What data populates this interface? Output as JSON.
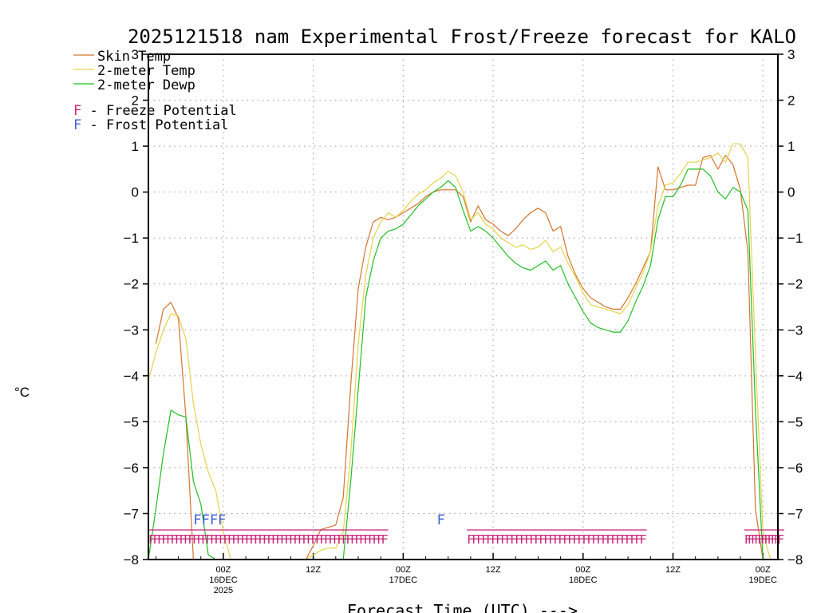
{
  "colors": {
    "skin": "#d5732f",
    "t2m": "#e5d34a",
    "dewp": "#1fbf23",
    "freeze": "#c8257a",
    "frost": "#3f5fd6",
    "grid": "#9a9a9a"
  },
  "chart_data": {
    "type": "line",
    "title": "2025121518 nam Experimental Frost/Freeze forecast for KALO",
    "xlabel": "Forecast Time (UTC) --->",
    "ylabel": "°C",
    "ylim": [
      -8,
      3
    ],
    "yticks": [
      -8,
      -7,
      -6,
      -5,
      -4,
      -3,
      -2,
      -1,
      0,
      1,
      2,
      3
    ],
    "xlim": [
      -10,
      74
    ],
    "xticks": [
      {
        "t": 0,
        "lines": [
          "00Z",
          "16DEC",
          "2025"
        ]
      },
      {
        "t": 12,
        "lines": [
          "12Z"
        ]
      },
      {
        "t": 24,
        "lines": [
          "00Z",
          "17DEC"
        ]
      },
      {
        "t": 36,
        "lines": [
          "12Z"
        ]
      },
      {
        "t": 48,
        "lines": [
          "00Z",
          "18DEC"
        ]
      },
      {
        "t": 60,
        "lines": [
          "12Z"
        ]
      },
      {
        "t": 72,
        "lines": [
          "00Z",
          "19DEC"
        ]
      }
    ],
    "legend": [
      {
        "key": "skin",
        "label": "Skin Temp"
      },
      {
        "key": "t2m",
        "label": "2-meter Temp"
      },
      {
        "key": "dewp",
        "label": "2-meter Dewp"
      }
    ],
    "potential_legend": [
      {
        "key": "freeze",
        "letter": "F",
        "text": " - Freeze Potential"
      },
      {
        "key": "frost",
        "letter": "F",
        "text": " - Frost Potential"
      }
    ],
    "series": [
      {
        "key": "skin",
        "name": "Skin Temp",
        "points": [
          [
            -9,
            -3.3
          ],
          [
            -8,
            -2.55
          ],
          [
            -7,
            -2.4
          ],
          [
            -6,
            -2.75
          ],
          [
            -5,
            -4.9
          ],
          [
            -4,
            -8.0
          ],
          [
            -3,
            -8.0
          ],
          [
            -2,
            -8.0
          ],
          [
            -1,
            -8.0
          ],
          [
            0,
            -8.0
          ],
          [
            1,
            -8.0
          ],
          [
            2,
            -8.0
          ],
          [
            3,
            -8.0
          ],
          [
            4,
            -8.0
          ],
          [
            5,
            -8.0
          ],
          [
            6,
            -8.0
          ],
          [
            7,
            -8.0
          ],
          [
            8,
            -8.0
          ],
          [
            9,
            -8.0
          ],
          [
            10,
            -8.0
          ],
          [
            11,
            -8.0
          ],
          [
            12,
            -7.7
          ],
          [
            13,
            -7.35
          ],
          [
            14,
            -7.3
          ],
          [
            15,
            -7.25
          ],
          [
            16,
            -6.65
          ],
          [
            17,
            -4.2
          ],
          [
            18,
            -2.1
          ],
          [
            19,
            -1.2
          ],
          [
            20,
            -0.65
          ],
          [
            21,
            -0.55
          ],
          [
            22,
            -0.6
          ],
          [
            23,
            -0.55
          ],
          [
            24,
            -0.45
          ],
          [
            25,
            -0.35
          ],
          [
            26,
            -0.25
          ],
          [
            27,
            -0.1
          ],
          [
            28,
            0.0
          ],
          [
            29,
            0.05
          ],
          [
            30,
            0.05
          ],
          [
            31,
            0.05
          ],
          [
            32,
            -0.1
          ],
          [
            33,
            -0.65
          ],
          [
            34,
            -0.3
          ],
          [
            35,
            -0.6
          ],
          [
            36,
            -0.7
          ],
          [
            37,
            -0.85
          ],
          [
            38,
            -0.95
          ],
          [
            39,
            -0.8
          ],
          [
            40,
            -0.6
          ],
          [
            41,
            -0.45
          ],
          [
            42,
            -0.35
          ],
          [
            43,
            -0.45
          ],
          [
            44,
            -0.85
          ],
          [
            45,
            -0.75
          ],
          [
            46,
            -1.4
          ],
          [
            47,
            -1.8
          ],
          [
            48,
            -2.1
          ],
          [
            49,
            -2.3
          ],
          [
            50,
            -2.4
          ],
          [
            51,
            -2.5
          ],
          [
            52,
            -2.55
          ],
          [
            53,
            -2.55
          ],
          [
            54,
            -2.3
          ],
          [
            55,
            -2.0
          ],
          [
            56,
            -1.65
          ],
          [
            57,
            -1.3
          ],
          [
            58,
            0.55
          ],
          [
            59,
            0.05
          ],
          [
            60,
            0.05
          ],
          [
            61,
            0.1
          ],
          [
            62,
            0.15
          ],
          [
            63,
            0.15
          ],
          [
            64,
            0.75
          ],
          [
            65,
            0.8
          ],
          [
            66,
            0.5
          ],
          [
            67,
            0.8
          ],
          [
            68,
            0.6
          ],
          [
            69,
            0.05
          ],
          [
            70,
            -1.3
          ],
          [
            71,
            -6.9
          ],
          [
            72,
            -8.0
          ],
          [
            73,
            -8.0
          ]
        ]
      },
      {
        "key": "t2m",
        "name": "2-meter Temp",
        "points": [
          [
            -10,
            -4.1
          ],
          [
            -9,
            -3.5
          ],
          [
            -8,
            -3.0
          ],
          [
            -7,
            -2.65
          ],
          [
            -6,
            -2.7
          ],
          [
            -5,
            -3.2
          ],
          [
            -4,
            -4.6
          ],
          [
            -3,
            -5.5
          ],
          [
            -2,
            -6.1
          ],
          [
            -1,
            -6.5
          ],
          [
            0,
            -7.4
          ],
          [
            1,
            -8.0
          ],
          [
            2,
            -8.0
          ],
          [
            3,
            -8.0
          ],
          [
            4,
            -8.0
          ],
          [
            5,
            -8.0
          ],
          [
            6,
            -8.0
          ],
          [
            7,
            -8.0
          ],
          [
            8,
            -8.0
          ],
          [
            9,
            -8.0
          ],
          [
            10,
            -8.0
          ],
          [
            11,
            -8.0
          ],
          [
            12,
            -7.9
          ],
          [
            13,
            -7.8
          ],
          [
            14,
            -7.75
          ],
          [
            15,
            -7.75
          ],
          [
            16,
            -7.4
          ],
          [
            17,
            -5.7
          ],
          [
            18,
            -3.3
          ],
          [
            19,
            -1.8
          ],
          [
            20,
            -1.0
          ],
          [
            21,
            -0.65
          ],
          [
            22,
            -0.45
          ],
          [
            23,
            -0.55
          ],
          [
            24,
            -0.4
          ],
          [
            25,
            -0.2
          ],
          [
            26,
            -0.05
          ],
          [
            27,
            0.05
          ],
          [
            28,
            0.2
          ],
          [
            29,
            0.3
          ],
          [
            30,
            0.45
          ],
          [
            31,
            0.35
          ],
          [
            32,
            0.0
          ],
          [
            33,
            -0.6
          ],
          [
            34,
            -0.45
          ],
          [
            35,
            -0.7
          ],
          [
            36,
            -0.8
          ],
          [
            37,
            -1.0
          ],
          [
            38,
            -1.1
          ],
          [
            39,
            -1.2
          ],
          [
            40,
            -1.15
          ],
          [
            41,
            -1.25
          ],
          [
            42,
            -1.2
          ],
          [
            43,
            -1.05
          ],
          [
            44,
            -1.3
          ],
          [
            45,
            -1.2
          ],
          [
            46,
            -1.55
          ],
          [
            47,
            -1.85
          ],
          [
            48,
            -2.2
          ],
          [
            49,
            -2.45
          ],
          [
            50,
            -2.5
          ],
          [
            51,
            -2.55
          ],
          [
            52,
            -2.6
          ],
          [
            53,
            -2.65
          ],
          [
            54,
            -2.45
          ],
          [
            55,
            -2.1
          ],
          [
            56,
            -1.75
          ],
          [
            57,
            -1.3
          ],
          [
            58,
            -0.3
          ],
          [
            59,
            0.15
          ],
          [
            60,
            0.2
          ],
          [
            61,
            0.4
          ],
          [
            62,
            0.65
          ],
          [
            63,
            0.65
          ],
          [
            64,
            0.7
          ],
          [
            65,
            0.75
          ],
          [
            66,
            0.85
          ],
          [
            67,
            0.65
          ],
          [
            68,
            1.05
          ],
          [
            69,
            1.05
          ],
          [
            70,
            0.75
          ],
          [
            71,
            -3.5
          ],
          [
            72,
            -7.4
          ],
          [
            73,
            -8.0
          ]
        ]
      },
      {
        "key": "dewp",
        "name": "2-meter Dewp",
        "points": [
          [
            -10,
            -8.0
          ],
          [
            -9,
            -6.9
          ],
          [
            -8,
            -5.7
          ],
          [
            -7,
            -4.75
          ],
          [
            -6,
            -4.85
          ],
          [
            -5,
            -4.9
          ],
          [
            -4,
            -6.3
          ],
          [
            -3,
            -6.8
          ],
          [
            -2,
            -7.9
          ],
          [
            -1,
            -8.0
          ],
          [
            0,
            -8.0
          ],
          [
            1,
            -8.0
          ],
          [
            2,
            -8.0
          ],
          [
            3,
            -8.0
          ],
          [
            4,
            -8.0
          ],
          [
            5,
            -8.0
          ],
          [
            6,
            -8.0
          ],
          [
            7,
            -8.0
          ],
          [
            8,
            -8.0
          ],
          [
            9,
            -8.0
          ],
          [
            10,
            -8.0
          ],
          [
            11,
            -8.0
          ],
          [
            12,
            -8.0
          ],
          [
            13,
            -8.0
          ],
          [
            14,
            -8.0
          ],
          [
            15,
            -8.0
          ],
          [
            16,
            -8.0
          ],
          [
            17,
            -6.3
          ],
          [
            18,
            -4.3
          ],
          [
            19,
            -2.3
          ],
          [
            20,
            -1.5
          ],
          [
            21,
            -1.0
          ],
          [
            22,
            -0.85
          ],
          [
            23,
            -0.8
          ],
          [
            24,
            -0.7
          ],
          [
            25,
            -0.5
          ],
          [
            26,
            -0.3
          ],
          [
            27,
            -0.15
          ],
          [
            28,
            0.0
          ],
          [
            29,
            0.1
          ],
          [
            30,
            0.25
          ],
          [
            31,
            0.1
          ],
          [
            32,
            -0.4
          ],
          [
            33,
            -0.85
          ],
          [
            34,
            -0.75
          ],
          [
            35,
            -0.85
          ],
          [
            36,
            -1.0
          ],
          [
            37,
            -1.2
          ],
          [
            38,
            -1.4
          ],
          [
            39,
            -1.55
          ],
          [
            40,
            -1.65
          ],
          [
            41,
            -1.7
          ],
          [
            42,
            -1.6
          ],
          [
            43,
            -1.5
          ],
          [
            44,
            -1.7
          ],
          [
            45,
            -1.6
          ],
          [
            46,
            -2.0
          ],
          [
            47,
            -2.3
          ],
          [
            48,
            -2.6
          ],
          [
            49,
            -2.85
          ],
          [
            50,
            -2.95
          ],
          [
            51,
            -3.0
          ],
          [
            52,
            -3.05
          ],
          [
            53,
            -3.05
          ],
          [
            54,
            -2.8
          ],
          [
            55,
            -2.4
          ],
          [
            56,
            -2.05
          ],
          [
            57,
            -1.6
          ],
          [
            58,
            -0.6
          ],
          [
            59,
            -0.1
          ],
          [
            60,
            -0.1
          ],
          [
            61,
            0.15
          ],
          [
            62,
            0.5
          ],
          [
            63,
            0.5
          ],
          [
            64,
            0.5
          ],
          [
            65,
            0.35
          ],
          [
            66,
            0.0
          ],
          [
            67,
            -0.15
          ],
          [
            68,
            0.1
          ],
          [
            69,
            0.0
          ],
          [
            70,
            -0.4
          ],
          [
            71,
            -4.7
          ],
          [
            72,
            -8.0
          ],
          [
            73,
            -8.0
          ]
        ]
      }
    ],
    "frost_marks": [
      {
        "t": -4.0,
        "label": "FFFF"
      },
      {
        "t": 28.5,
        "label": "F"
      }
    ],
    "freeze_marks": [
      {
        "t_start": -10.0,
        "t_end": 22.0,
        "label": "FFFFFFFFFFFFFFFFFFFFFFFFFFFFFFFFFFFFFFFFFFFFFFFFFFFFFF"
      },
      {
        "t_start": 32.5,
        "t_end": 56.5,
        "label": "FFFFFFFFFFFFFFFFFFFFFFFFFFFFFFFFFFFFF"
      },
      {
        "t_start": 69.5,
        "t_end": 75.0,
        "label": "FFFFFFFFFFF"
      }
    ]
  }
}
